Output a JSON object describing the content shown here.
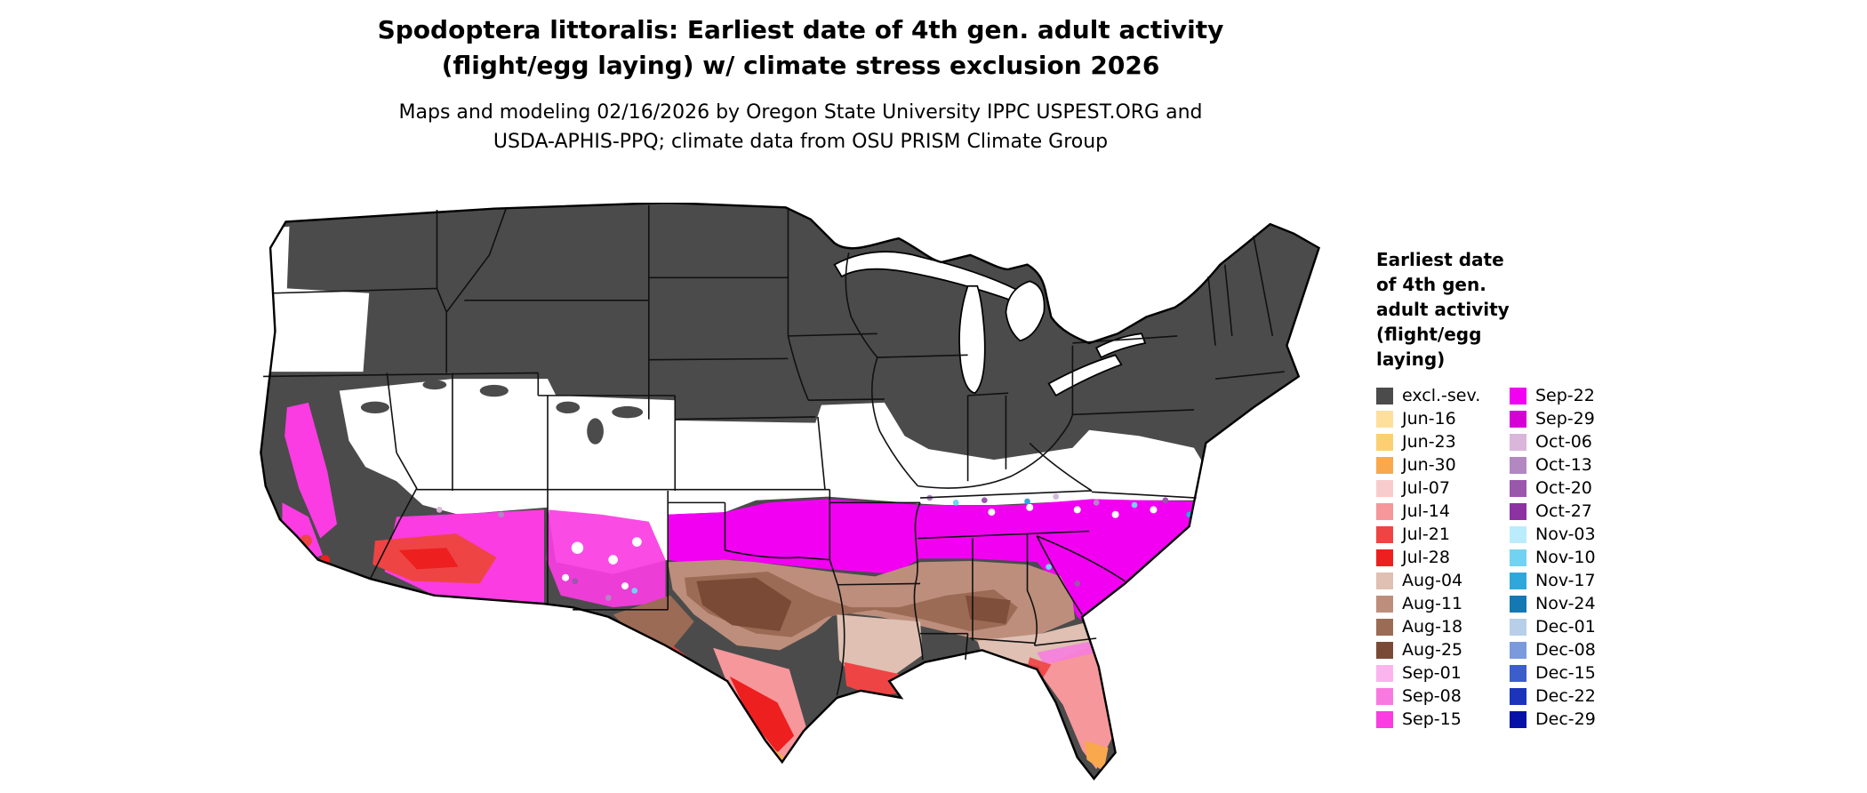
{
  "header": {
    "title_line1": "Spodoptera littoralis: Earliest date of 4th gen. adult activity",
    "title_line2": "(flight/egg laying) w/ climate stress exclusion 2026",
    "subtitle_line1": "Maps and modeling 02/16/2026 by Oregon State University IPPC USPEST.ORG and",
    "subtitle_line2": "USDA-APHIS-PPQ; climate data from OSU PRISM Climate Group"
  },
  "legend": {
    "title_lines": [
      "Earliest date",
      "of 4th gen.",
      "adult activity",
      "(flight/egg",
      "laying)"
    ],
    "column1": [
      {
        "label": "excl.-sev.",
        "color": "#4b4b4b"
      },
      {
        "label": "Jun-16",
        "color": "#ffdf9c"
      },
      {
        "label": "Jun-23",
        "color": "#fdcf72"
      },
      {
        "label": "Jun-30",
        "color": "#f9a84e"
      },
      {
        "label": "Jul-07",
        "color": "#f8cccd"
      },
      {
        "label": "Jul-14",
        "color": "#f5979b"
      },
      {
        "label": "Jul-21",
        "color": "#ef4444"
      },
      {
        "label": "Jul-28",
        "color": "#ee1f1f"
      },
      {
        "label": "Aug-04",
        "color": "#dfc0b2"
      },
      {
        "label": "Aug-11",
        "color": "#bd8e7c"
      },
      {
        "label": "Aug-18",
        "color": "#9c6b55"
      },
      {
        "label": "Aug-25",
        "color": "#7b4a37"
      },
      {
        "label": "Sep-01",
        "color": "#fbb4ee"
      },
      {
        "label": "Sep-08",
        "color": "#f87ae0"
      },
      {
        "label": "Sep-15",
        "color": "#fa3ce2"
      }
    ],
    "column2": [
      {
        "label": "Sep-22",
        "color": "#f200f2"
      },
      {
        "label": "Sep-29",
        "color": "#d600d6"
      },
      {
        "label": "Oct-06",
        "color": "#d9b6da"
      },
      {
        "label": "Oct-13",
        "color": "#b287c2"
      },
      {
        "label": "Oct-20",
        "color": "#9958ac"
      },
      {
        "label": "Oct-27",
        "color": "#8c32a2"
      },
      {
        "label": "Nov-03",
        "color": "#baecfb"
      },
      {
        "label": "Nov-10",
        "color": "#71d3f1"
      },
      {
        "label": "Nov-17",
        "color": "#2fa7da"
      },
      {
        "label": "Nov-24",
        "color": "#1478b2"
      },
      {
        "label": "Dec-01",
        "color": "#b7cfe9"
      },
      {
        "label": "Dec-08",
        "color": "#7b99dd"
      },
      {
        "label": "Dec-15",
        "color": "#3b5ecb"
      },
      {
        "label": "Dec-22",
        "color": "#1b34ba"
      },
      {
        "label": "Dec-29",
        "color": "#0711a8"
      }
    ]
  }
}
